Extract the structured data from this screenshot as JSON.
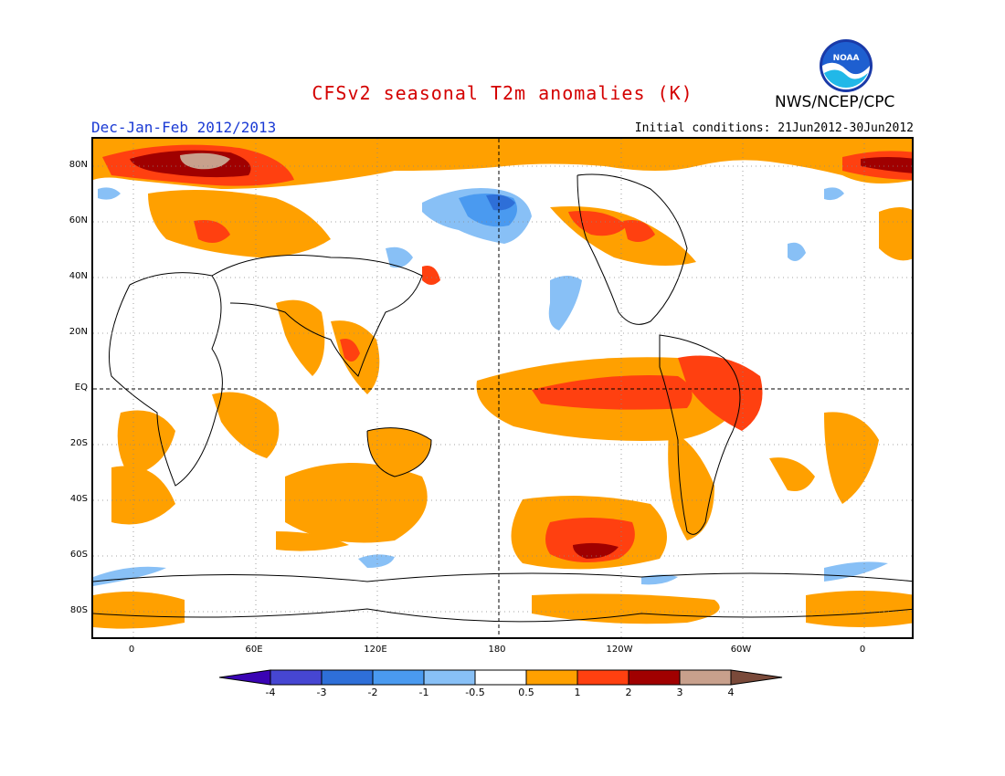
{
  "header": {
    "title": "CFSv2 seasonal T2m anomalies (K)",
    "period": "Dec-Jan-Feb 2012/2013",
    "initial_conditions": "Initial conditions: 21Jun2012-30Jun2012",
    "agency": "NWS/NCEP/CPC",
    "logo_text": "NOAA"
  },
  "map": {
    "lat_labels": [
      "80N",
      "60N",
      "40N",
      "20N",
      "EQ",
      "20S",
      "40S",
      "60S",
      "80S"
    ],
    "lon_labels": [
      "0",
      "60E",
      "120E",
      "180",
      "120W",
      "60W",
      "0"
    ]
  },
  "legend": {
    "tick_labels": [
      "-4",
      "-3",
      "-2",
      "-1",
      "-0.5",
      "0.5",
      "1",
      "2",
      "3",
      "4"
    ],
    "colors": [
      "#3a04b4",
      "#4646d2",
      "#2e6fd8",
      "#4a9af0",
      "#88c0f6",
      "#ffffff",
      "#ffa000",
      "#ff4010",
      "#a00000",
      "#c8a08c",
      "#7a4a3a"
    ]
  },
  "colors": {
    "title": "#d40000",
    "period": "#1a3ad4",
    "warm_1": "#ffa000",
    "warm_2": "#ff4010",
    "warm_3": "#a00000",
    "warm_4": "#c8a08c",
    "cool_1": "#88c0f6",
    "cool_2": "#4a9af0",
    "cool_3": "#2e6fd8"
  }
}
